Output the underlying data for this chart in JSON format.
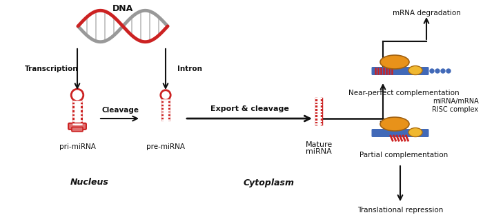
{
  "bg_color": "#ffffff",
  "red": "#cc2222",
  "pink": "#e07070",
  "dark": "#111111",
  "blue": "#4169b8",
  "light_blue": "#6688cc",
  "orange": "#e8921a",
  "yellow_orange": "#f0b830",
  "gray": "#999999",
  "gray2": "#bbbbbb",
  "labels": {
    "dna": "DNA",
    "transcription": "Transcription",
    "intron": "Intron",
    "cleavage": "Cleavage",
    "pri": "pri-miRNA",
    "pre": "pre-miRNA",
    "export": "Export & cleavage",
    "mature1": "Mature",
    "mature2": "miRNA",
    "near_perfect": "Near-perfect complementation",
    "partial": "Partial complementation",
    "risc": "miRNA/mRNA\nRISC complex",
    "mrna_deg": "mRNA degradation",
    "trans_rep": "Translational repression",
    "nucleus": "Nucleus",
    "cytoplasm": "Cytoplasm"
  },
  "figw": 7.0,
  "figh": 3.12,
  "dpi": 100
}
